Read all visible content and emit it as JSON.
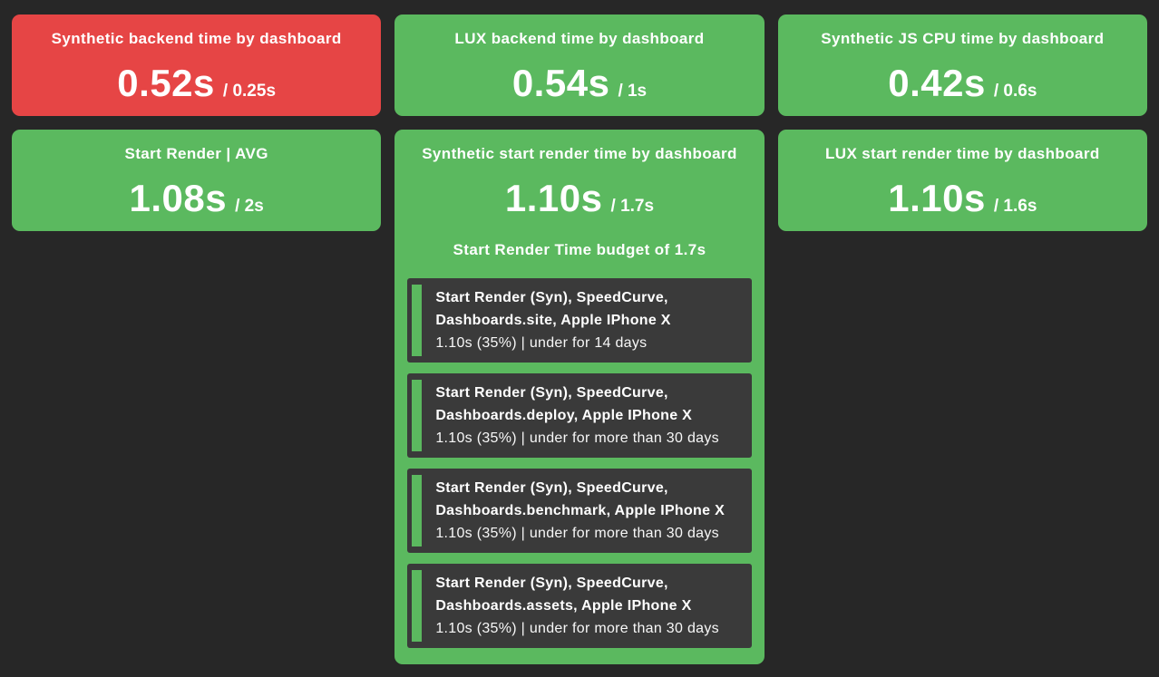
{
  "colors": {
    "page_background": "#272727",
    "status_over_budget": "#e64545",
    "status_under_budget": "#5bb95f",
    "budget_item_background": "#3a3a3a",
    "text": "#ffffff"
  },
  "cards": [
    {
      "title": "Synthetic backend time by dashboard",
      "value": "0.52s",
      "budget_label": "/ 0.25s",
      "status": "over-budget"
    },
    {
      "title": "LUX backend time by dashboard",
      "value": "0.54s",
      "budget_label": "/ 1s",
      "status": "under-budget"
    },
    {
      "title": "Synthetic JS CPU time by dashboard",
      "value": "0.42s",
      "budget_label": "/ 0.6s",
      "status": "under-budget"
    },
    {
      "title": "Start Render | AVG",
      "value": "1.08s",
      "budget_label": "/ 2s",
      "status": "under-budget"
    },
    {
      "title": "Synthetic start render time by dashboard",
      "value": "1.10s",
      "budget_label": "/ 1.7s",
      "status": "under-budget",
      "budget_heading": "Start Render Time budget of 1.7s",
      "budget_items": [
        {
          "name": "Start Render (Syn), SpeedCurve,\nDashboards.site, Apple IPhone X",
          "detail": "1.10s (35%) | under for 14 days"
        },
        {
          "name": "Start Render (Syn), SpeedCurve,\nDashboards.deploy, Apple IPhone X",
          "detail": "1.10s (35%) | under for more than 30 days"
        },
        {
          "name": "Start Render (Syn), SpeedCurve,\nDashboards.benchmark, Apple IPhone X",
          "detail": "1.10s (35%) | under for more than 30 days"
        },
        {
          "name": "Start Render (Syn), SpeedCurve,\nDashboards.assets, Apple IPhone X",
          "detail": "1.10s (35%) | under for more than 30 days"
        }
      ]
    },
    {
      "title": "LUX start render time by dashboard",
      "value": "1.10s",
      "budget_label": "/ 1.6s",
      "status": "under-budget"
    }
  ]
}
